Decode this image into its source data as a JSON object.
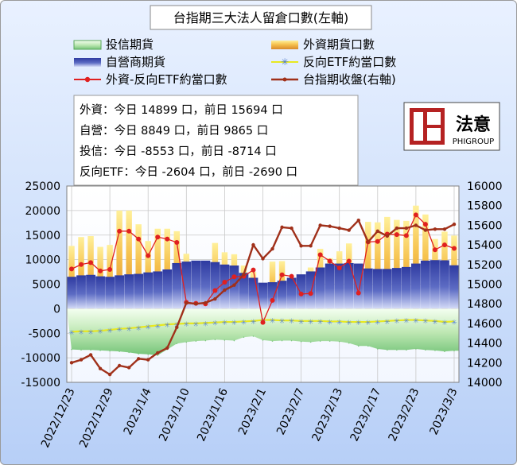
{
  "chart_data": {
    "type": "bar",
    "title": "台指期三大法人留倉口數(左軸)",
    "legend": {
      "placement": "top",
      "items": [
        {
          "key": "trust",
          "label": "投信期貨"
        },
        {
          "key": "foreign",
          "label": "外資期貨口數"
        },
        {
          "key": "dealer",
          "label": "自營商期貨"
        },
        {
          "key": "etf",
          "label": "反向ETF約當口數"
        },
        {
          "key": "diff",
          "label": "外資-反向ETF約當口數"
        },
        {
          "key": "close",
          "label": "台指期收盤(右軸)"
        }
      ]
    },
    "info": [
      {
        "name": "外資",
        "text": "：今日 14899 口，前日 15694 口"
      },
      {
        "name": "自營",
        "text": "：今日 8849 口，前日 9865 口"
      },
      {
        "name": "投信",
        "text": "：今日 -8553 口，前日 -8714 口"
      },
      {
        "name": "反向ETF",
        "text": "：今日 -2604 口，前日 -2690 口"
      }
    ],
    "logo": {
      "text": "法意",
      "subtext": "PHIGROUP"
    },
    "y_left": {
      "min": -15000,
      "max": 25000,
      "ticks": [
        25000,
        20000,
        15000,
        10000,
        5000,
        0,
        -5000,
        -10000,
        -15000
      ]
    },
    "y_right": {
      "min": 14000,
      "max": 16000,
      "ticks": [
        16000,
        15800,
        15600,
        15400,
        15200,
        15000,
        14800,
        14600,
        14400,
        14200,
        14000
      ]
    },
    "grid": true,
    "x_ticks": [
      {
        "label": "2022/12/23",
        "index": 0
      },
      {
        "label": "2022/12/29",
        "index": 4
      },
      {
        "label": "2023/1/4",
        "index": 8
      },
      {
        "label": "2023/1/10",
        "index": 12
      },
      {
        "label": "2023/1/16",
        "index": 16
      },
      {
        "label": "2023/2/1",
        "index": 20
      },
      {
        "label": "2023/2/7",
        "index": 24
      },
      {
        "label": "2023/2/13",
        "index": 28
      },
      {
        "label": "2023/2/17",
        "index": 32
      },
      {
        "label": "2023/2/23",
        "index": 36
      },
      {
        "label": "2023/3/3",
        "index": 40
      }
    ],
    "series": [
      {
        "key": "foreign",
        "name": "外資期貨口數",
        "color": "#f0b840",
        "values": [
          12800,
          14600,
          14800,
          12600,
          13000,
          20000,
          20000,
          17200,
          13800,
          16300,
          16300,
          15800,
          11200,
          5800,
          7600,
          13400,
          11500,
          11100,
          8800,
          7500,
          4300,
          9600,
          9700,
          6300,
          6200,
          8400,
          12200,
          10300,
          11700,
          13300,
          7300,
          17700,
          17600,
          18700,
          18100,
          17900,
          21000,
          19200,
          14200,
          15700,
          14899
        ],
        "note": "estimated"
      },
      {
        "key": "dealer",
        "name": "自營商期貨",
        "color": "#4a55a8",
        "values": [
          6500,
          6800,
          6900,
          6600,
          6500,
          6800,
          7000,
          7100,
          7400,
          7600,
          8000,
          9300,
          9600,
          9800,
          9800,
          9500,
          9000,
          8800,
          7300,
          6300,
          5300,
          5400,
          5700,
          6300,
          7000,
          7600,
          8400,
          9200,
          9200,
          9300,
          9200,
          8200,
          8100,
          8100,
          8300,
          8500,
          9200,
          9800,
          9900,
          9865,
          8849
        ],
        "note": "estimated"
      },
      {
        "key": "trust",
        "name": "投信期貨",
        "color": "#98d898",
        "values": [
          -8300,
          -8400,
          -8400,
          -8500,
          -8600,
          -8700,
          -8900,
          -9200,
          -9300,
          -9500,
          -8300,
          -7100,
          -6800,
          -6600,
          -6500,
          -6300,
          -6400,
          -6500,
          -5800,
          -5600,
          -6400,
          -6600,
          -6500,
          -6500,
          -6700,
          -6800,
          -6600,
          -6600,
          -6700,
          -7000,
          -7600,
          -7600,
          -8200,
          -8400,
          -8400,
          -8400,
          -8200,
          -8400,
          -8500,
          -8714,
          -8553
        ],
        "note": "estimated"
      },
      {
        "key": "etf",
        "name": "反向ETF約當口數",
        "color": "#e8e820",
        "marker": "star",
        "values": [
          -4700,
          -4600,
          -4600,
          -4500,
          -4300,
          -4100,
          -4000,
          -3800,
          -3600,
          -3400,
          -3200,
          -3100,
          -3000,
          -3000,
          -2900,
          -2800,
          -2700,
          -2700,
          -2600,
          -2500,
          -2300,
          -2300,
          -2400,
          -2400,
          -2500,
          -2500,
          -2500,
          -2600,
          -2600,
          -2700,
          -2700,
          -2700,
          -2600,
          -2500,
          -2400,
          -2300,
          -2300,
          -2400,
          -2500,
          -2690,
          -2604
        ],
        "note": "estimated"
      },
      {
        "key": "diff",
        "name": "外資-反向ETF約當口數",
        "color": "#e02020",
        "marker": "dot",
        "values": [
          8100,
          9000,
          9400,
          7700,
          8000,
          15800,
          15800,
          14200,
          10800,
          14600,
          14200,
          13500,
          1300,
          1100,
          1000,
          3700,
          5400,
          6500,
          6600,
          7900,
          -2800,
          1700,
          6900,
          6600,
          3000,
          3100,
          11000,
          9700,
          8300,
          9700,
          3200,
          13600,
          13700,
          15200,
          15100,
          14900,
          19100,
          17200,
          12000,
          13000,
          12295
        ],
        "note": "estimated"
      },
      {
        "key": "close",
        "name": "台指期收盤(右軸)",
        "color": "#a0301a",
        "axis": "right",
        "values": [
          14200,
          14230,
          14280,
          14140,
          14080,
          14170,
          14150,
          14240,
          14230,
          14300,
          14350,
          14560,
          14810,
          14800,
          14810,
          14850,
          14940,
          14990,
          15100,
          15400,
          15260,
          15360,
          15580,
          15570,
          15390,
          15390,
          15600,
          15590,
          15570,
          15550,
          15650,
          15430,
          15540,
          15490,
          15570,
          15570,
          15600,
          15550,
          15560,
          15560,
          15610
        ],
        "note": "estimated"
      }
    ]
  }
}
